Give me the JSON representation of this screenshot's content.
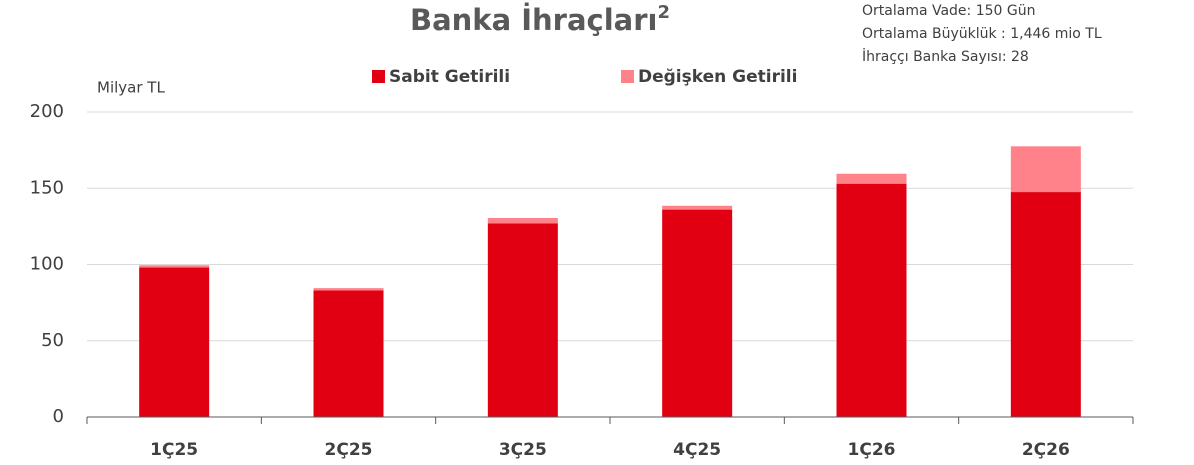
{
  "chart_data": {
    "type": "stacked_bar",
    "title": "Banka İhraçları",
    "title_superscript": "2",
    "annotations": [
      "Ortalama Vade: 150 Gün",
      "Ortalama Büyüklük : 1,446 mio TL",
      "İhraççı Banka Sayısı: 28"
    ],
    "y_axis_label": "Milyar TL",
    "categories": [
      "1Ç25",
      "2Ç25",
      "3Ç25",
      "4Ç25",
      "1Ç26",
      "2Ç26"
    ],
    "series": [
      {
        "name": "Sabit Getirili",
        "color": "#e00012",
        "values": [
          98,
          83,
          127,
          136,
          153,
          147.5
        ]
      },
      {
        "name": "Değişken Getirili",
        "color": "#ff8189",
        "values": [
          1.5,
          1.5,
          3.5,
          2.5,
          6.5,
          30
        ]
      }
    ],
    "ylim": [
      0,
      200
    ],
    "yticks": [
      0,
      50,
      100,
      150,
      200
    ],
    "grid": true,
    "legend": "top"
  }
}
